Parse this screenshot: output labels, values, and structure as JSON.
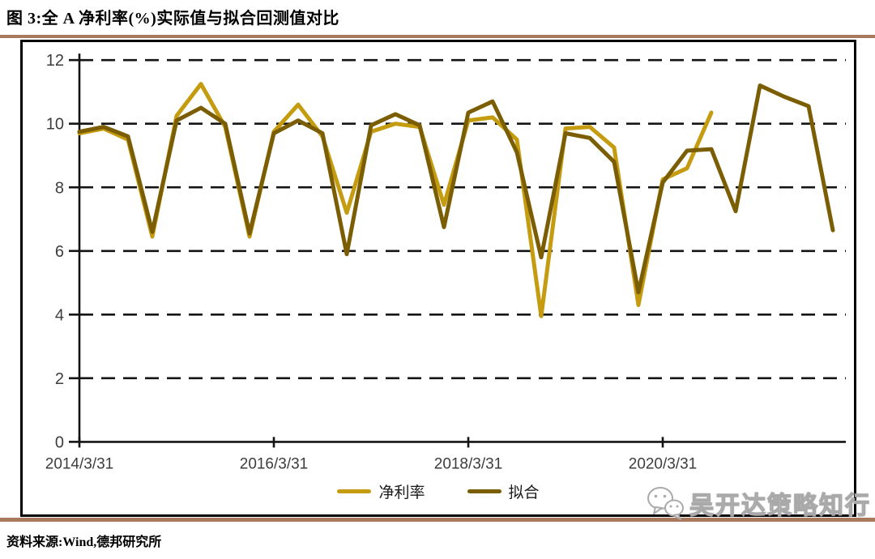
{
  "title": "图 3:全 A 净利率(%)实际值与拟合回测值对比",
  "source": "资料来源:Wind,德邦研究所",
  "watermark": "吴开达策略知行",
  "watermark_icon": "wechat-icon",
  "colors": {
    "actual_line": "#c59b10",
    "fitted_line": "#7b5e04",
    "divider": "#a8795a",
    "axis": "#141414",
    "tick_text": "#3d3d3d"
  },
  "chart_data": {
    "type": "line",
    "title": "全 A 净利率(%)实际值与拟合回测值对比",
    "ylim": [
      0,
      12
    ],
    "yticks": [
      0,
      2,
      4,
      6,
      8,
      10,
      12
    ],
    "grid": "horizontal-dashed",
    "legend_position": "bottom-center",
    "x_tick_labels": [
      "2014/3/31",
      "2016/3/31",
      "2018/3/31",
      "2020/3/31"
    ],
    "x_tick_every_n_points": 8,
    "categories": [
      "2014/3/31",
      "2014/6/30",
      "2014/9/30",
      "2014/12/31",
      "2015/3/31",
      "2015/6/30",
      "2015/9/30",
      "2015/12/31",
      "2016/3/31",
      "2016/6/30",
      "2016/9/30",
      "2016/12/31",
      "2017/3/31",
      "2017/6/30",
      "2017/9/30",
      "2017/12/31",
      "2018/3/31",
      "2018/6/30",
      "2018/9/30",
      "2018/12/31",
      "2019/3/31",
      "2019/6/30",
      "2019/9/30",
      "2019/12/31",
      "2020/3/31",
      "2020/6/30",
      "2020/9/30",
      "2020/12/31",
      "2021/3/31",
      "2021/6/30",
      "2021/9/30",
      "2021/12/31"
    ],
    "series": [
      {
        "name": "净利率",
        "color": "#c59b10",
        "values": [
          9.7,
          9.85,
          9.5,
          6.45,
          10.25,
          11.25,
          9.9,
          6.45,
          9.75,
          10.6,
          9.6,
          7.2,
          9.75,
          10.0,
          9.9,
          7.45,
          10.1,
          10.2,
          9.5,
          3.95,
          9.85,
          9.9,
          9.25,
          4.3,
          8.25,
          8.6,
          10.35,
          null,
          null,
          null,
          null,
          null
        ]
      },
      {
        "name": "拟合",
        "color": "#7b5e04",
        "values": [
          9.75,
          9.9,
          9.6,
          6.6,
          10.1,
          10.5,
          10.0,
          6.55,
          9.7,
          10.1,
          9.7,
          5.9,
          9.95,
          10.3,
          9.95,
          6.75,
          10.35,
          10.7,
          9.1,
          5.8,
          9.7,
          9.55,
          8.8,
          4.7,
          8.15,
          9.15,
          9.2,
          7.25,
          11.2,
          10.85,
          10.55,
          6.65
        ]
      }
    ]
  }
}
